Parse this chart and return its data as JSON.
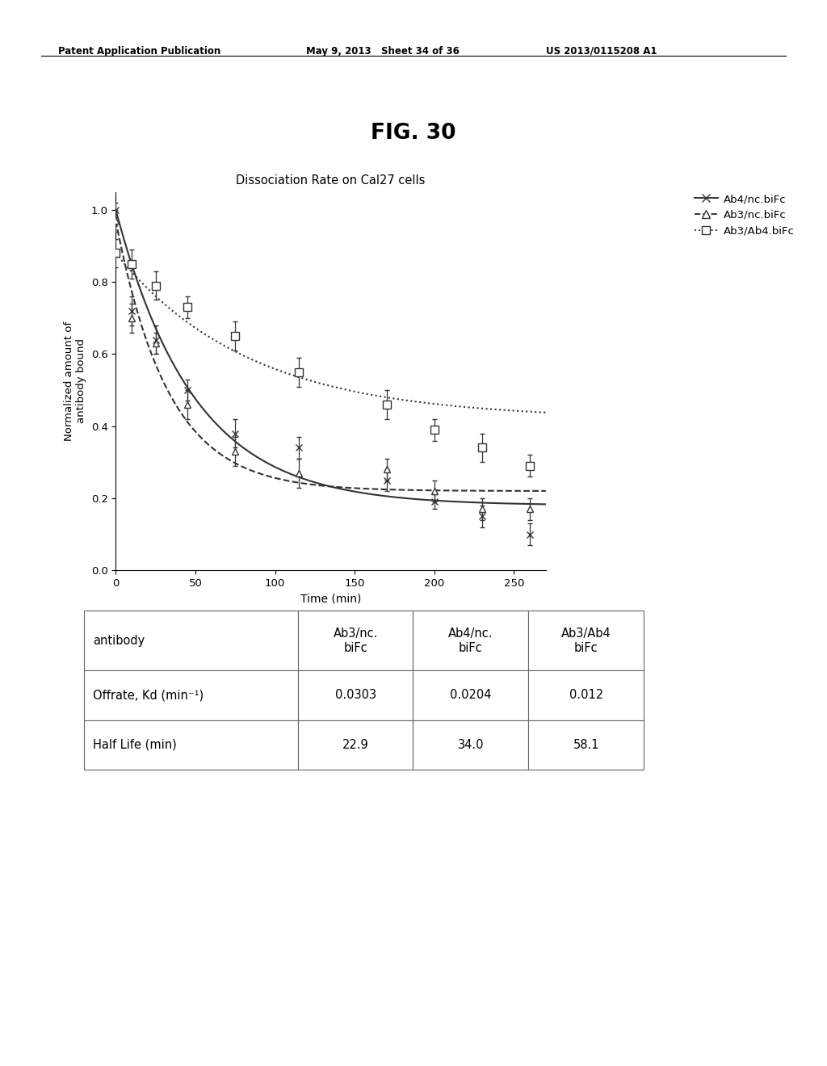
{
  "header_left": "Patent Application Publication",
  "header_mid": "May 9, 2013   Sheet 34 of 36",
  "header_right": "US 2013/0115208 A1",
  "fig_title": "FIG. 30",
  "chart_title": "Dissociation Rate on Cal27 cells",
  "xlabel": "Time (min)",
  "ylabel": "Normalized amount of\nantibody bound",
  "xlim": [
    0,
    270
  ],
  "ylim": [
    0.0,
    1.05
  ],
  "xticks": [
    0,
    50,
    100,
    150,
    200,
    250
  ],
  "yticks": [
    0.0,
    0.2,
    0.4,
    0.6,
    0.8,
    1.0
  ],
  "series": {
    "Ab4nc": {
      "label": "Ab4/nc.biFc",
      "marker": "x",
      "linestyle": "-",
      "color": "#333333",
      "x": [
        0,
        10,
        25,
        45,
        75,
        115,
        170,
        200,
        230,
        260
      ],
      "y": [
        1.0,
        0.72,
        0.64,
        0.5,
        0.38,
        0.34,
        0.25,
        0.19,
        0.15,
        0.1
      ],
      "yerr": [
        0.02,
        0.04,
        0.04,
        0.03,
        0.04,
        0.03,
        0.03,
        0.02,
        0.03,
        0.03
      ],
      "kd": 0.0204,
      "plateau": 0.18
    },
    "Ab3nc": {
      "label": "Ab3/nc.biFc",
      "marker": "^",
      "linestyle": "--",
      "color": "#333333",
      "x": [
        0,
        10,
        25,
        45,
        75,
        115,
        170,
        200,
        230,
        260
      ],
      "y": [
        0.97,
        0.7,
        0.63,
        0.46,
        0.33,
        0.27,
        0.28,
        0.22,
        0.17,
        0.17
      ],
      "yerr": [
        0.03,
        0.04,
        0.03,
        0.04,
        0.04,
        0.04,
        0.03,
        0.03,
        0.03,
        0.03
      ],
      "kd": 0.0303,
      "plateau": 0.22
    },
    "Ab3Ab4": {
      "label": "Ab3/Ab4.biFc",
      "marker": "s",
      "linestyle": ":",
      "color": "#333333",
      "x": [
        0,
        10,
        25,
        45,
        75,
        115,
        170,
        200,
        230,
        260
      ],
      "y": [
        0.88,
        0.85,
        0.79,
        0.73,
        0.65,
        0.55,
        0.46,
        0.39,
        0.34,
        0.29
      ],
      "yerr": [
        0.04,
        0.04,
        0.04,
        0.03,
        0.04,
        0.04,
        0.04,
        0.03,
        0.04,
        0.03
      ],
      "kd": 0.012,
      "plateau": 0.42
    }
  },
  "table": {
    "col_labels": [
      "antibody",
      "Ab3/nc.\nbiFc",
      "Ab4/nc.\nbiFc",
      "Ab3/Ab4\nbiFc"
    ],
    "rows": [
      [
        "Offrate, Kd (min⁻¹)",
        "0.0303",
        "0.0204",
        "0.012"
      ],
      [
        "Half Life (min)",
        "22.9",
        "34.0",
        "58.1"
      ]
    ]
  }
}
